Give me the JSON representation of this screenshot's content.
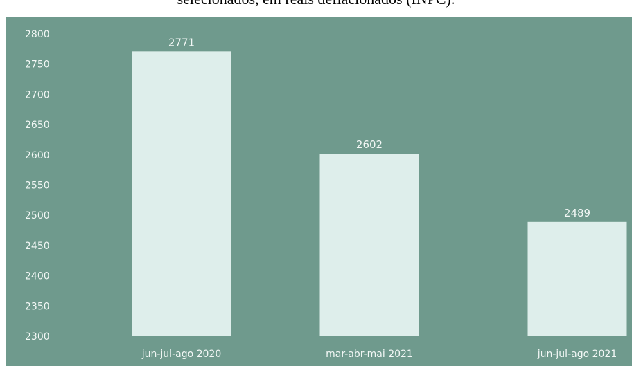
{
  "chart_data": {
    "type": "bar",
    "title": "selecionados, em reais deflacionados (INPC).",
    "categories": [
      "jun-jul-ago 2020",
      "mar-abr-mai 2021",
      "jun-jul-ago 2021"
    ],
    "values": [
      2771,
      2602,
      2489
    ],
    "data_labels": [
      "2771",
      "2602",
      "2489"
    ],
    "y_ticks": [
      "2800",
      "2750",
      "2700",
      "2650",
      "2600",
      "2550",
      "2500",
      "2450",
      "2400",
      "2350",
      "2300"
    ],
    "ylim": [
      2300,
      2800
    ],
    "xlabel": "",
    "ylabel": "",
    "grid": false,
    "colors": {
      "background": "#6f9a8d",
      "bar": "#deeeeb",
      "text": "#f3f8f6"
    }
  }
}
